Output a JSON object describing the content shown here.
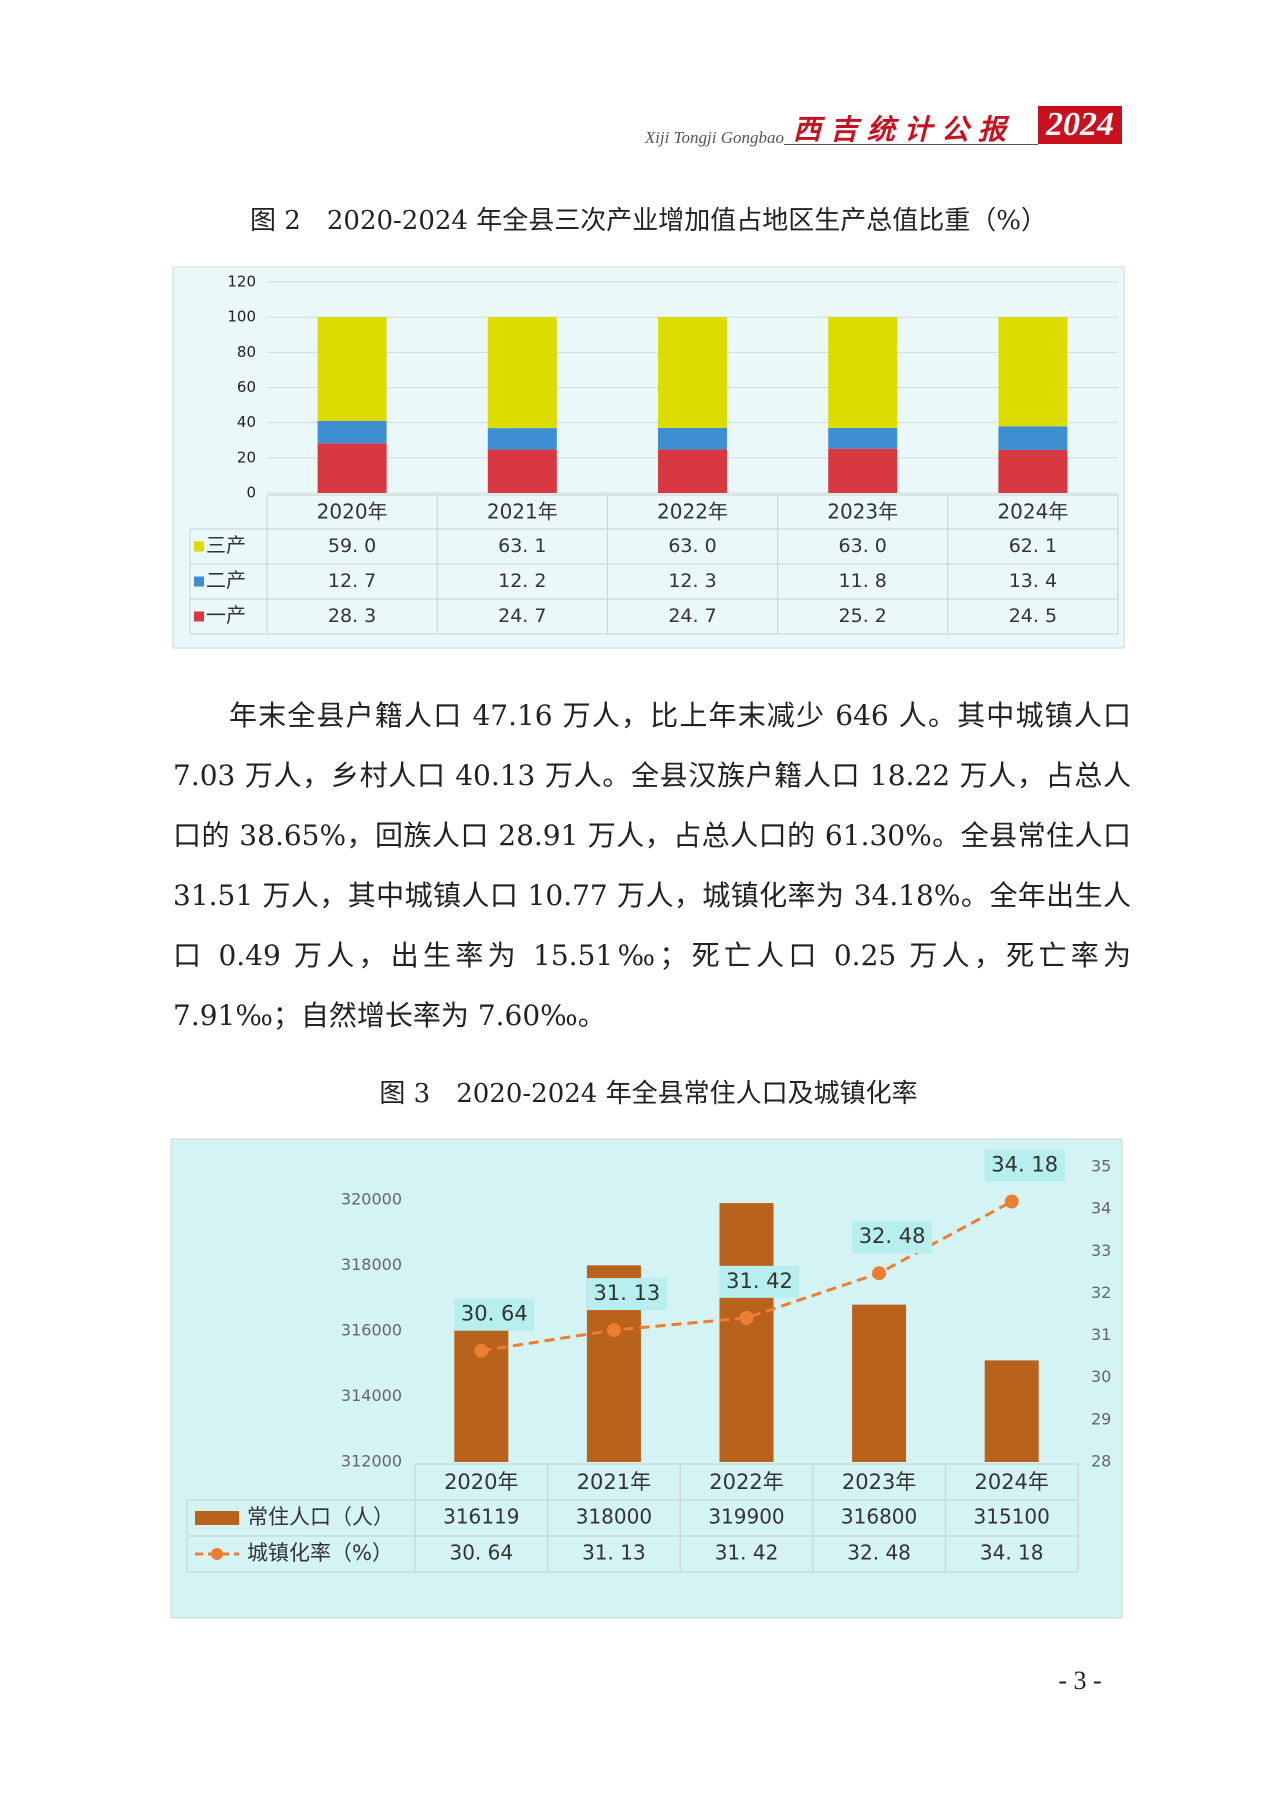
{
  "header": {
    "subtitle": "Xiji Tongji Gongbao",
    "title": "西吉统计公报",
    "year": "2024"
  },
  "chart_data": [
    {
      "type": "bar",
      "stacked": true,
      "title": "图 2　2020-2024 年全县三次产业增加值占地区生产总值比重（%）",
      "categories": [
        "2020年",
        "2021年",
        "2022年",
        "2023年",
        "2024年"
      ],
      "series": [
        {
          "name": "一产",
          "color": "#d8383f",
          "values": [
            28.3,
            24.7,
            24.7,
            25.2,
            24.5
          ],
          "value_labels": [
            "28. 3",
            "24. 7",
            "24. 7",
            "25. 2",
            "24. 5"
          ]
        },
        {
          "name": "二产",
          "color": "#3d8fd1",
          "values": [
            12.7,
            12.2,
            12.3,
            11.8,
            13.4
          ],
          "value_labels": [
            "12. 7",
            "12. 2",
            "12. 3",
            "11. 8",
            "13. 4"
          ]
        },
        {
          "name": "三产",
          "color": "#dcdc00",
          "values": [
            59.0,
            63.1,
            63.0,
            63.0,
            62.1
          ],
          "value_labels": [
            "59. 0",
            "63. 1",
            "63. 0",
            "63. 0",
            "62. 1"
          ]
        }
      ],
      "ylim": [
        0,
        120
      ],
      "yticks": [
        0,
        20,
        40,
        60,
        80,
        100,
        120
      ],
      "grid": true
    },
    {
      "type": "bar",
      "stacked": false,
      "title": "图 3　2020-2024 年全县常住人口及城镇化率",
      "categories": [
        "2020年",
        "2021年",
        "2022年",
        "2023年",
        "2024年"
      ],
      "series": [
        {
          "name": "常住人口（人）",
          "type": "bar",
          "color": "#b8621b",
          "values": [
            316119,
            318000,
            319900,
            316800,
            315100
          ]
        },
        {
          "name": "城镇化率（%）",
          "type": "line",
          "axis": "y2",
          "color": "#ed7d31",
          "values": [
            30.64,
            31.13,
            31.42,
            32.48,
            34.18
          ],
          "value_labels": [
            "30. 64",
            "31. 13",
            "31. 42",
            "32. 48",
            "34. 18"
          ]
        }
      ],
      "ylim": [
        312000,
        321000
      ],
      "yticks": [
        312000,
        314000,
        316000,
        318000,
        320000
      ],
      "y2lim": [
        28,
        35
      ],
      "y2ticks": [
        28,
        29,
        30,
        31,
        32,
        33,
        34,
        35
      ],
      "grid": false
    }
  ],
  "body": {
    "paragraph": "年末全县户籍人口 47.16 万人，比上年末减少 646 人。其中城镇人口 7.03 万人，乡村人口 40.13 万人。全县汉族户籍人口 18.22 万人，占总人口的 38.65%，回族人口 28.91 万人，占总人口的 61.30%。全县常住人口 31.51 万人，其中城镇人口 10.77 万人，城镇化率为 34.18%。全年出生人口 0.49 万人，出生率为 15.51‰；死亡人口 0.25 万人，死亡率为 7.91‰；自然增长率为 7.60‰。"
  },
  "page_number": "- 3 -"
}
